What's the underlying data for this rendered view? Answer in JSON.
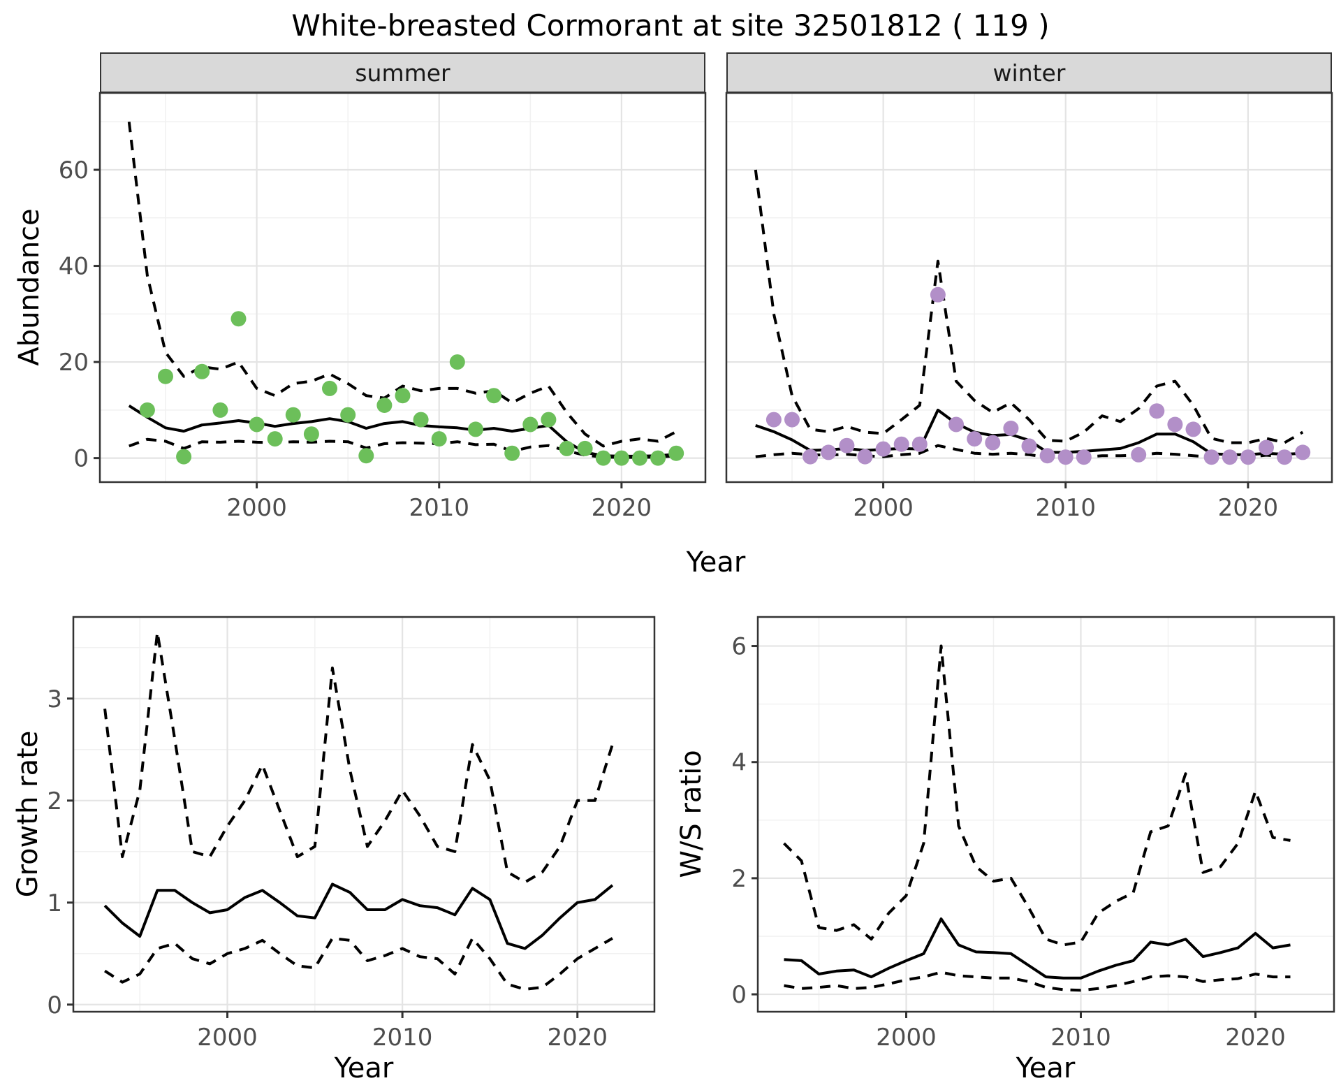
{
  "title": "White-breasted Cormorant at site 32501812 ( 119 )",
  "axes": {
    "abundance_ylabel": "Abundance",
    "top_xlabel": "Year",
    "growth_ylabel": "Growth rate",
    "growth_xlabel": "Year",
    "ws_ylabel": "W/S ratio",
    "ws_xlabel": "Year"
  },
  "facets": {
    "summer": "summer",
    "winter": "winter"
  },
  "style": {
    "fit_line_color": "#000000",
    "ci_line_style": "dashed",
    "summer_point_color": "#6cbf5a",
    "winter_point_color": "#b28fc8",
    "strip_background": "#d9d9d9",
    "panel_border_color": "#333333",
    "grid_major_color": "#e4e4e4",
    "grid_minor_color": "#f1f1f1",
    "tick_label_color": "#4d4d4d"
  },
  "chart_data": [
    {
      "id": "abundance-summer",
      "panel": "abundance-summer",
      "type": "line",
      "facet_label": "summer",
      "xlabel": "Year",
      "ylabel": "Abundance",
      "xlim": [
        1991.4,
        2024.6
      ],
      "ylim": [
        -5,
        76
      ],
      "xticks": [
        2000,
        2010,
        2020
      ],
      "xticks_minor": [
        1995,
        2005,
        2015
      ],
      "yticks": [
        0,
        20,
        40,
        60
      ],
      "yticks_minor": [
        10,
        30,
        50,
        70
      ],
      "y_tick_labels": true,
      "point_color": "#6cbf5a",
      "years": [
        1993,
        1994,
        1995,
        1996,
        1997,
        1998,
        1999,
        2000,
        2001,
        2002,
        2003,
        2004,
        2005,
        2006,
        2007,
        2008,
        2009,
        2010,
        2011,
        2012,
        2013,
        2014,
        2015,
        2016,
        2017,
        2018,
        2019,
        2020,
        2021,
        2022,
        2023
      ],
      "fit": [
        10.9,
        8.5,
        6.3,
        5.6,
        6.9,
        7.3,
        7.8,
        7.3,
        6.6,
        7.2,
        7.6,
        8.2,
        7.6,
        6.2,
        7.2,
        7.6,
        6.8,
        6.5,
        6.3,
        5.8,
        6.2,
        5.6,
        6.2,
        6.8,
        3.4,
        1.2,
        0.5,
        0.4,
        0.4,
        0.5,
        0.8
      ],
      "ci_upper": [
        70,
        38,
        22,
        17,
        19,
        18.5,
        20,
        14.5,
        13,
        15.5,
        16,
        17.5,
        15.5,
        13,
        12.5,
        15,
        14,
        14.5,
        14.5,
        13.5,
        14,
        11.5,
        13.5,
        15,
        9.5,
        5,
        2.5,
        3.5,
        4,
        3.5,
        5.5
      ],
      "ci_lower": [
        2.5,
        3.9,
        3.5,
        2.0,
        3.4,
        3.3,
        3.5,
        3.3,
        3.2,
        3.4,
        3.3,
        3.5,
        3.4,
        2.1,
        3.0,
        3.2,
        3.1,
        3.0,
        3.4,
        2.8,
        2.9,
        1.4,
        2.3,
        2.6,
        1.5,
        0.6,
        0.2,
        0.15,
        0.15,
        0.2,
        0.5
      ],
      "obs_years": [
        1994,
        1995,
        1996,
        1997,
        1998,
        1999,
        2000,
        2001,
        2002,
        2003,
        2004,
        2005,
        2006,
        2007,
        2008,
        2009,
        2010,
        2011,
        2012,
        2013,
        2014,
        2015,
        2016,
        2017,
        2018,
        2019,
        2020,
        2021,
        2022,
        2023
      ],
      "obs_values": [
        10,
        17,
        0.3,
        18,
        10,
        29,
        7,
        4,
        9,
        5,
        14.5,
        9,
        0.5,
        11,
        13,
        8,
        4,
        20,
        6,
        13,
        1,
        7,
        8,
        2,
        2,
        0,
        0,
        0,
        0,
        1
      ]
    },
    {
      "id": "abundance-winter",
      "panel": "abundance-winter",
      "type": "line",
      "facet_label": "winter",
      "xlabel": "Year",
      "ylabel": "Abundance",
      "xlim": [
        1991.4,
        2024.6
      ],
      "ylim": [
        -5,
        76
      ],
      "xticks": [
        2000,
        2010,
        2020
      ],
      "xticks_minor": [
        1995,
        2005,
        2015
      ],
      "yticks": [
        0,
        20,
        40,
        60
      ],
      "yticks_minor": [
        10,
        30,
        50,
        70
      ],
      "y_tick_labels": false,
      "point_color": "#b28fc8",
      "years": [
        1993,
        1994,
        1995,
        1996,
        1997,
        1998,
        1999,
        2000,
        2001,
        2002,
        2003,
        2004,
        2005,
        2006,
        2007,
        2008,
        2009,
        2010,
        2011,
        2012,
        2013,
        2014,
        2015,
        2016,
        2017,
        2018,
        2019,
        2020,
        2021,
        2022,
        2023
      ],
      "fit": [
        6.8,
        5.5,
        3.8,
        1.6,
        1.7,
        2.0,
        1.6,
        1.8,
        2.0,
        1.9,
        10.0,
        7.2,
        5.4,
        4.7,
        4.9,
        3.7,
        1.2,
        1.2,
        1.4,
        1.7,
        2.0,
        3.2,
        5.0,
        5.0,
        3.4,
        0.9,
        0.7,
        0.7,
        1.0,
        0.8,
        1.0
      ],
      "ci_upper": [
        60,
        30,
        13,
        6,
        5.5,
        6.6,
        5.4,
        5.1,
        8,
        11,
        41,
        16,
        12,
        9.5,
        11.5,
        8,
        3.7,
        3.5,
        5.4,
        8.8,
        7.6,
        10.3,
        15,
        16,
        11,
        4.1,
        3.2,
        3.2,
        4.1,
        3.2,
        5.4
      ],
      "ci_lower": [
        0.3,
        0.7,
        1.0,
        0.7,
        0.6,
        0.8,
        0.5,
        0.3,
        0.7,
        1.0,
        2.6,
        1.8,
        1.0,
        0.8,
        1.0,
        0.7,
        0.2,
        0.1,
        0.2,
        0.5,
        0.5,
        0.6,
        1.0,
        0.8,
        0.5,
        0.2,
        0.2,
        0.2,
        0.6,
        0.3,
        0.5
      ],
      "obs_years": [
        1994,
        1995,
        1996,
        1997,
        1998,
        1999,
        2000,
        2001,
        2002,
        2003,
        2004,
        2005,
        2006,
        2007,
        2008,
        2009,
        2010,
        2011,
        2014,
        2015,
        2016,
        2017,
        2018,
        2019,
        2020,
        2021,
        2022,
        2023
      ],
      "obs_values": [
        8,
        8,
        0.3,
        1.2,
        2.6,
        0.3,
        1.9,
        2.9,
        2.9,
        34,
        7,
        4,
        3.2,
        6.2,
        2.5,
        0.5,
        0.2,
        0.2,
        0.7,
        9.8,
        7,
        6,
        0.2,
        0.2,
        0.2,
        2.2,
        0.2,
        1.2
      ]
    },
    {
      "id": "growth-rate",
      "panel": "growth-rate",
      "type": "line",
      "xlabel": "Year",
      "ylabel": "Growth rate",
      "xlim": [
        1991.2,
        2024.4
      ],
      "ylim": [
        -0.07,
        3.8
      ],
      "xticks": [
        2000,
        2010,
        2020
      ],
      "xticks_minor": [
        1995,
        2005,
        2015
      ],
      "yticks": [
        0,
        1,
        2,
        3
      ],
      "yticks_minor": [
        0.5,
        1.5,
        2.5,
        3.5
      ],
      "y_tick_labels": true,
      "years": [
        1993,
        1994,
        1995,
        1996,
        1997,
        1998,
        1999,
        2000,
        2001,
        2002,
        2003,
        2004,
        2005,
        2006,
        2007,
        2008,
        2009,
        2010,
        2011,
        2012,
        2013,
        2014,
        2015,
        2016,
        2017,
        2018,
        2019,
        2020,
        2021,
        2022
      ],
      "fit": [
        0.97,
        0.8,
        0.67,
        1.12,
        1.12,
        1.0,
        0.9,
        0.93,
        1.05,
        1.12,
        1.0,
        0.87,
        0.85,
        1.18,
        1.1,
        0.93,
        0.93,
        1.03,
        0.97,
        0.95,
        0.88,
        1.14,
        1.03,
        0.6,
        0.55,
        0.68,
        0.85,
        1.0,
        1.03,
        1.17
      ],
      "ci_upper": [
        2.9,
        1.45,
        2.1,
        3.65,
        2.6,
        1.5,
        1.45,
        1.75,
        2.0,
        2.35,
        1.9,
        1.45,
        1.55,
        3.3,
        2.3,
        1.55,
        1.8,
        2.1,
        1.85,
        1.55,
        1.5,
        2.55,
        2.2,
        1.3,
        1.2,
        1.3,
        1.55,
        2.0,
        2.0,
        2.55
      ],
      "ci_lower": [
        0.33,
        0.22,
        0.3,
        0.55,
        0.6,
        0.45,
        0.4,
        0.5,
        0.55,
        0.63,
        0.5,
        0.38,
        0.36,
        0.65,
        0.63,
        0.43,
        0.48,
        0.55,
        0.47,
        0.45,
        0.3,
        0.65,
        0.45,
        0.2,
        0.15,
        0.17,
        0.3,
        0.45,
        0.55,
        0.65
      ]
    },
    {
      "id": "ws-ratio",
      "panel": "ws-ratio",
      "type": "line",
      "xlabel": "Year",
      "ylabel": "W/S ratio",
      "xlim": [
        1991.5,
        2024.5
      ],
      "ylim": [
        -0.3,
        6.5
      ],
      "xticks": [
        2000,
        2010,
        2020
      ],
      "xticks_minor": [
        1995,
        2005,
        2015
      ],
      "yticks": [
        0,
        2,
        4,
        6
      ],
      "yticks_minor": [
        1,
        3,
        5
      ],
      "y_tick_labels": true,
      "years": [
        1993,
        1994,
        1995,
        1996,
        1997,
        1998,
        1999,
        2000,
        2001,
        2002,
        2003,
        2004,
        2005,
        2006,
        2007,
        2008,
        2009,
        2010,
        2011,
        2012,
        2013,
        2014,
        2015,
        2016,
        2017,
        2018,
        2019,
        2020,
        2021,
        2022
      ],
      "fit": [
        0.6,
        0.58,
        0.35,
        0.4,
        0.42,
        0.3,
        0.45,
        0.58,
        0.7,
        1.3,
        0.85,
        0.73,
        0.72,
        0.7,
        0.5,
        0.3,
        0.28,
        0.28,
        0.4,
        0.5,
        0.58,
        0.9,
        0.85,
        0.95,
        0.65,
        0.72,
        0.8,
        1.05,
        0.8,
        0.85
      ],
      "ci_upper": [
        2.6,
        2.3,
        1.15,
        1.1,
        1.2,
        0.95,
        1.4,
        1.7,
        2.6,
        6.0,
        2.9,
        2.2,
        1.95,
        2.0,
        1.5,
        0.95,
        0.85,
        0.9,
        1.4,
        1.6,
        1.75,
        2.8,
        2.9,
        3.8,
        2.1,
        2.2,
        2.6,
        3.5,
        2.7,
        2.65
      ],
      "ci_lower": [
        0.15,
        0.1,
        0.12,
        0.15,
        0.1,
        0.12,
        0.18,
        0.25,
        0.3,
        0.38,
        0.32,
        0.3,
        0.28,
        0.28,
        0.22,
        0.12,
        0.08,
        0.07,
        0.1,
        0.15,
        0.22,
        0.3,
        0.32,
        0.3,
        0.22,
        0.25,
        0.27,
        0.35,
        0.3,
        0.3
      ]
    }
  ]
}
